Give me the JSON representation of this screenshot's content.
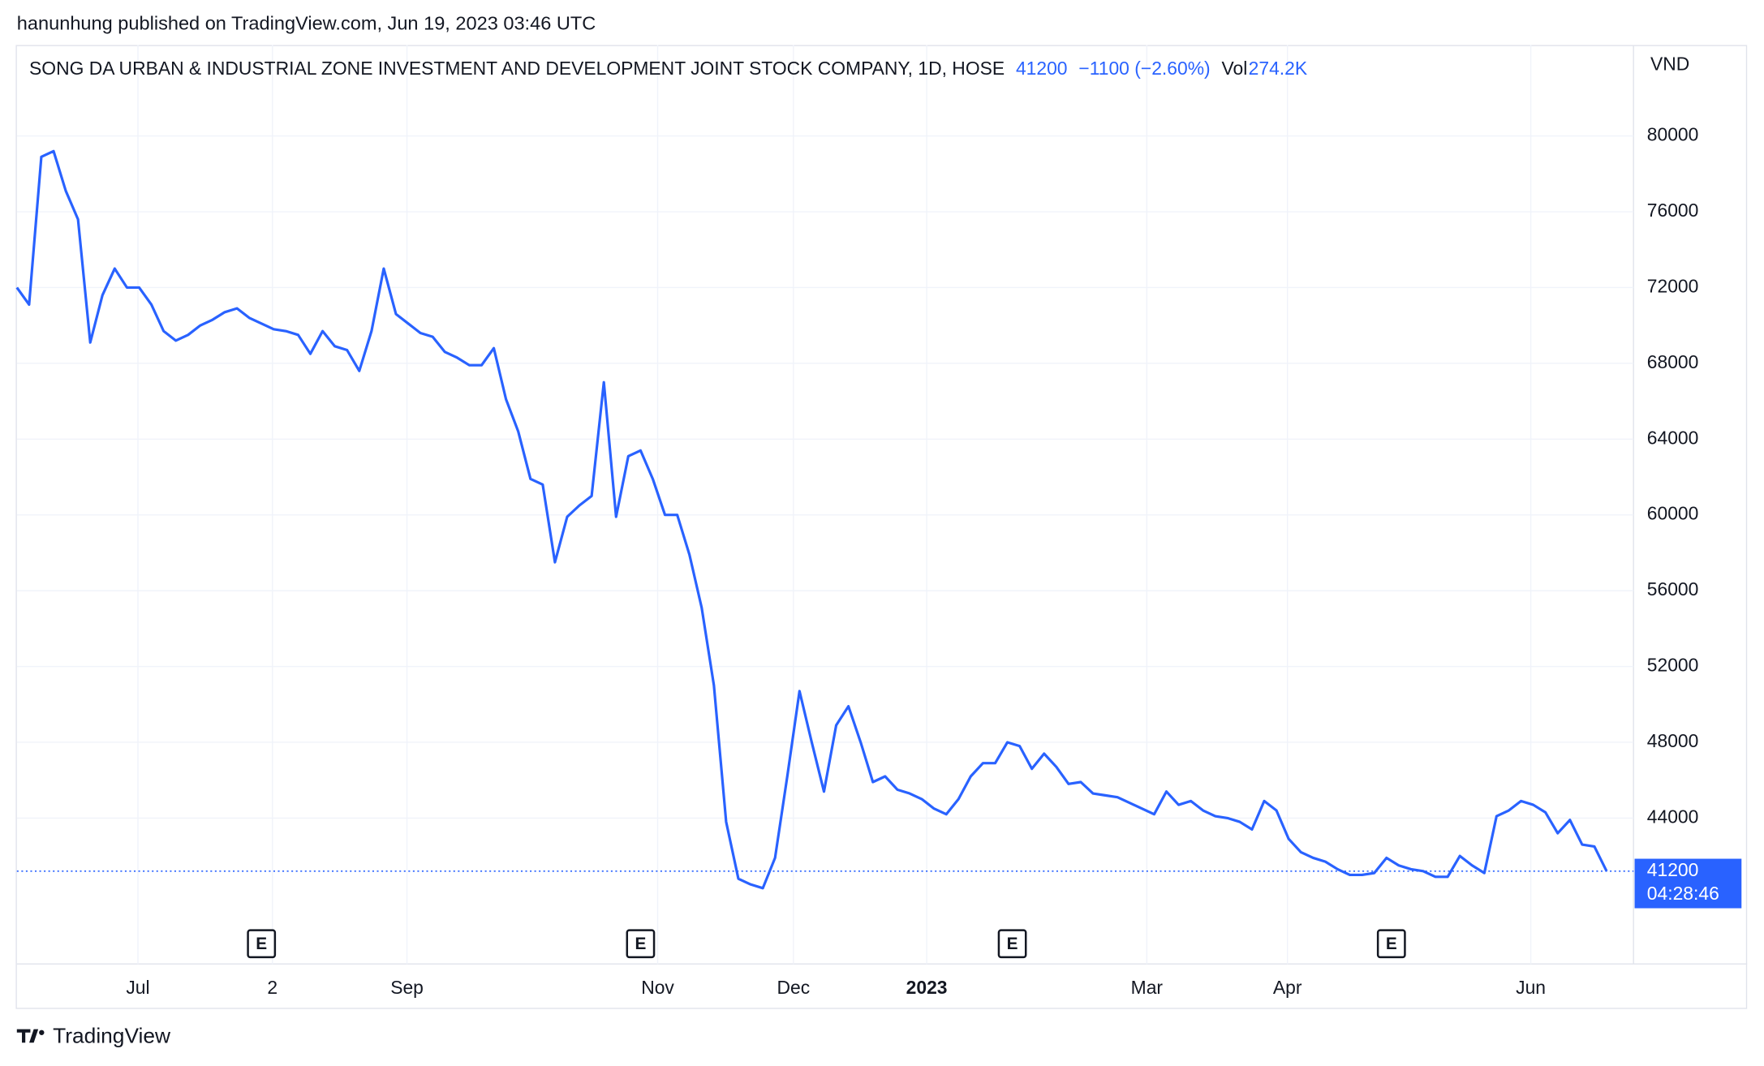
{
  "header": {
    "publisher": "hanunhung published on TradingView.com, Jun 19, 2023 03:46 UTC",
    "footer": "TradingView"
  },
  "chart_data": {
    "type": "line",
    "title": "SONG DA URBAN & INDUSTRIAL ZONE INVESTMENT AND DEVELOPMENT JOINT STOCK COMPANY, 1D, HOSE",
    "last": 41200,
    "change": "−1100 (−2.60%)",
    "volume_label": "Vol",
    "volume": "274.2K",
    "currency": "VND",
    "countdown": "04:28:46",
    "series": [
      {
        "name": "SONG DA URBAN & INDUSTRIAL ZONE INVESTMENT AND DEVELOPMENT JOINT STOCK COMPANY",
        "color": "#2962ff",
        "values": [
          72000,
          71100,
          78900,
          79200,
          77100,
          75600,
          69100,
          71600,
          73000,
          72000,
          72000,
          71100,
          69700,
          69200,
          69500,
          70000,
          70300,
          70700,
          70900,
          70400,
          70100,
          69800,
          69700,
          69500,
          68500,
          69700,
          68900,
          68700,
          67600,
          69700,
          73000,
          70600,
          70100,
          69600,
          69400,
          68600,
          68300,
          67900,
          67900,
          68800,
          66100,
          64400,
          61900,
          61600,
          57500,
          59900,
          60500,
          61000,
          67000,
          59900,
          63100,
          63400,
          61900,
          60000,
          60000,
          57900,
          55100,
          51000,
          43800,
          40800,
          40500,
          40300,
          41900,
          46200,
          50700,
          48000,
          45400,
          48900,
          49900,
          48000,
          45900,
          46200,
          45500,
          45300,
          45000,
          44500,
          44200,
          45000,
          46200,
          46900,
          46900,
          48000,
          47800,
          46600,
          47400,
          46700,
          45800,
          45900,
          45300,
          45200,
          45100,
          44800,
          44500,
          44200,
          45400,
          44700,
          44900,
          44400,
          44100,
          44000,
          43800,
          43400,
          44900,
          44400,
          42900,
          42200,
          41900,
          41700,
          41300,
          41000,
          41000,
          41100,
          41900,
          41500,
          41300,
          41200,
          40900,
          40900,
          42000,
          41500,
          41100,
          44100,
          44400,
          44900,
          44700,
          44300,
          43200,
          43900,
          42600,
          42500,
          41200
        ]
      }
    ],
    "xlim": [
      0,
      132
    ],
    "xticks": [
      {
        "value": 9.9,
        "label": "Jul"
      },
      {
        "value": 20.9,
        "label": "2"
      },
      {
        "value": 31.9,
        "label": "Sep"
      },
      {
        "value": 52.4,
        "label": "Nov"
      },
      {
        "value": 63.5,
        "label": "Dec"
      },
      {
        "value": 74.4,
        "label": "2023"
      },
      {
        "value": 92.4,
        "label": "Mar"
      },
      {
        "value": 103.9,
        "label": "Apr"
      },
      {
        "value": 123.8,
        "label": "Jun"
      }
    ],
    "ylim": [
      36300,
      84800
    ],
    "yticks": [
      44000,
      48000,
      52000,
      56000,
      60000,
      64000,
      68000,
      72000,
      76000,
      80000
    ],
    "events": [
      {
        "x": 20.0,
        "label": "E"
      },
      {
        "x": 51.0,
        "label": "E"
      },
      {
        "x": 81.4,
        "label": "E"
      },
      {
        "x": 112.4,
        "label": "E"
      }
    ],
    "grid": true
  }
}
